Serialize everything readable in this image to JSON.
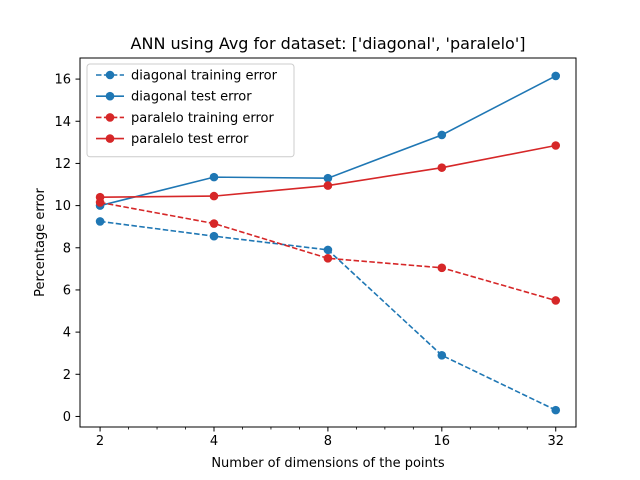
{
  "chart_data": {
    "type": "line",
    "title": "ANN using Avg for dataset: ['diagonal', 'paralelo']",
    "xlabel": "Number of dimensions of the points",
    "ylabel": "Percentage error",
    "x_scale": "log2",
    "x": [
      2,
      4,
      8,
      16,
      32
    ],
    "x_tick_labels": [
      "2",
      "4",
      "8",
      "16",
      "32"
    ],
    "xlim": [
      1.77,
      36.2
    ],
    "ylim": [
      -0.5,
      17.0
    ],
    "y_ticks": [
      0,
      2,
      4,
      6,
      8,
      10,
      12,
      14,
      16
    ],
    "y_tick_labels": [
      "0",
      "2",
      "4",
      "6",
      "8",
      "10",
      "12",
      "14",
      "16"
    ],
    "grid": false,
    "legend_position": "top-left",
    "series": [
      {
        "name": "diagonal training error",
        "color": "#1f77b4",
        "linestyle": "dashed",
        "marker": "circle",
        "values": [
          9.25,
          8.55,
          7.9,
          2.9,
          0.3
        ]
      },
      {
        "name": "diagonal test error",
        "color": "#1f77b4",
        "linestyle": "solid",
        "marker": "circle",
        "values": [
          10.0,
          11.35,
          11.3,
          13.35,
          16.15
        ]
      },
      {
        "name": "paralelo training error",
        "color": "#d62728",
        "linestyle": "dashed",
        "marker": "circle",
        "values": [
          10.15,
          9.15,
          7.5,
          7.05,
          5.5
        ]
      },
      {
        "name": "paralelo test error",
        "color": "#d62728",
        "linestyle": "solid",
        "marker": "circle",
        "values": [
          10.4,
          10.45,
          10.95,
          11.8,
          12.85
        ]
      }
    ]
  }
}
